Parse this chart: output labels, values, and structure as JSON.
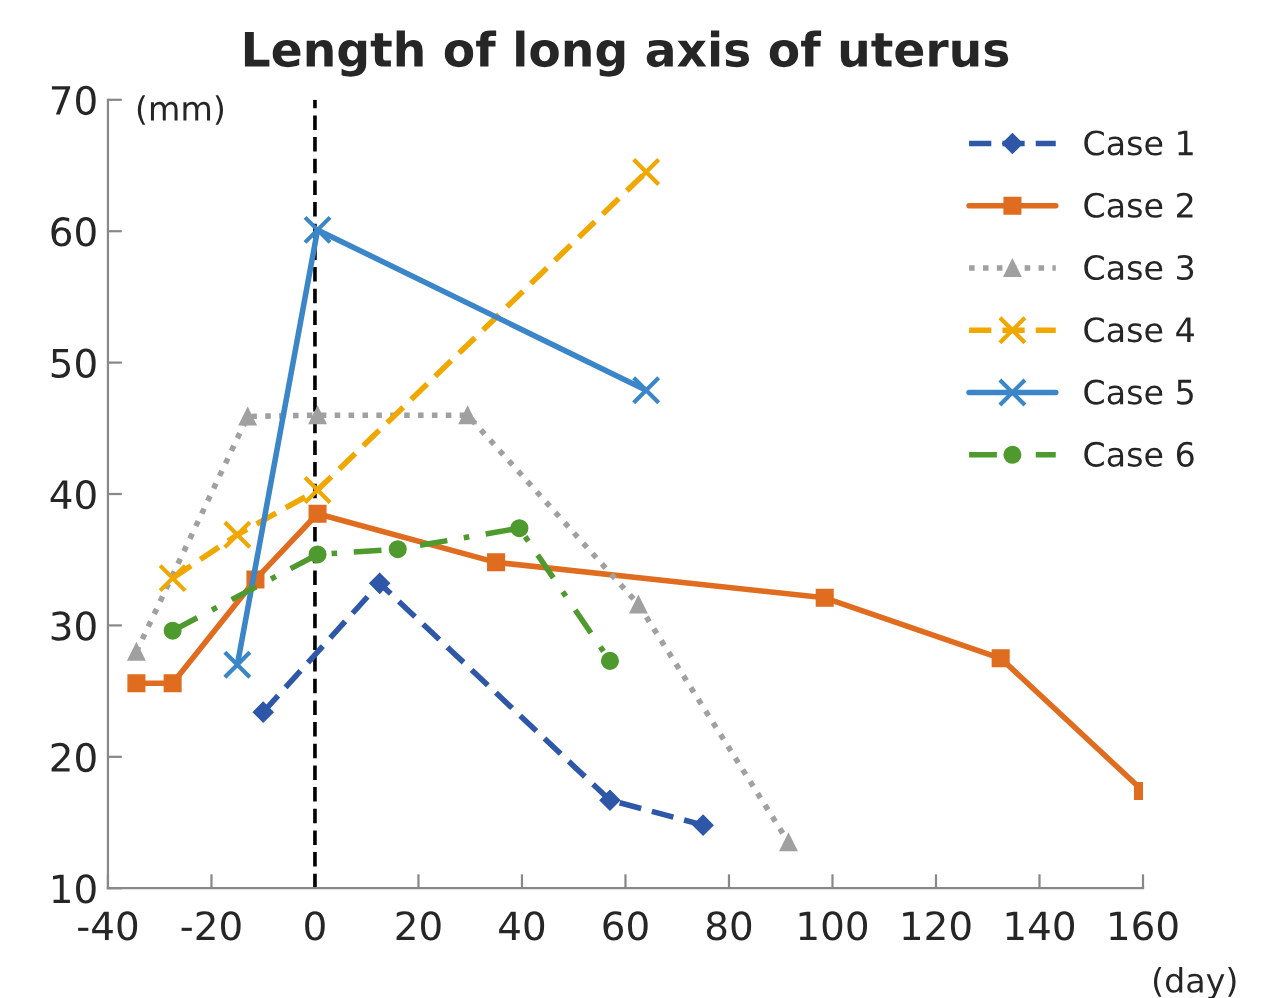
{
  "chart_data": {
    "type": "line",
    "title": "Length of long axis of uterus",
    "xlabel": "(day)",
    "ylabel": "(mm)",
    "xlim": [
      -40,
      160
    ],
    "xticks": [
      -40,
      -20,
      0,
      20,
      40,
      60,
      80,
      100,
      120,
      140,
      160
    ],
    "ylim": [
      10,
      70
    ],
    "yticks": [
      10,
      20,
      30,
      40,
      50,
      60,
      70
    ],
    "grid": false,
    "legend": "top right",
    "ref_lines": [
      {
        "axis": "x",
        "value": 0,
        "color": "#000000",
        "line_style": "dashed"
      }
    ],
    "series": [
      {
        "name": "Case 1",
        "color": "#2e57a8",
        "marker": "diamond",
        "line_style": "dashed",
        "x": [
          -10,
          12.5,
          57,
          75
        ],
        "values": [
          23.4,
          33.2,
          16.7,
          14.8
        ]
      },
      {
        "name": "Case 2",
        "color": "#e06c1f",
        "marker": "square",
        "line_style": "solid",
        "x": [
          -34.5,
          -27.5,
          -11.5,
          0.5,
          35,
          98.5,
          132.5,
          160
        ],
        "values": [
          25.6,
          25.6,
          33.5,
          38.5,
          34.8,
          32.1,
          27.5,
          17.4
        ]
      },
      {
        "name": "Case 3",
        "color": "#a0a0a0",
        "marker": "triangle",
        "line_style": "dotted",
        "x": [
          -34.5,
          -13,
          0.5,
          29.5,
          62.5,
          91.5
        ],
        "values": [
          28.0,
          45.9,
          46.0,
          46.0,
          31.6,
          13.5
        ]
      },
      {
        "name": "Case 4",
        "color": "#f0a800",
        "marker": "cross",
        "line_style": "dashed",
        "x": [
          -27.5,
          -15,
          0.5,
          64
        ],
        "values": [
          33.6,
          36.9,
          40.3,
          64.5
        ]
      },
      {
        "name": "Case 5",
        "color": "#3b86c8",
        "marker": "cross",
        "line_style": "solid",
        "x": [
          -15,
          0.5,
          64
        ],
        "values": [
          27.0,
          60.1,
          47.9
        ]
      },
      {
        "name": "Case 6",
        "color": "#4e9a2e",
        "marker": "circle",
        "line_style": "dashdot",
        "x": [
          -27.5,
          0.5,
          16,
          39.5,
          57
        ],
        "values": [
          29.6,
          35.4,
          35.8,
          37.4,
          27.3
        ]
      }
    ]
  }
}
